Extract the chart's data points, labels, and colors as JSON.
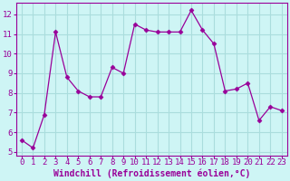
{
  "x": [
    0,
    1,
    2,
    3,
    4,
    5,
    6,
    7,
    8,
    9,
    10,
    11,
    12,
    13,
    14,
    15,
    16,
    17,
    18,
    19,
    20,
    21,
    22,
    23
  ],
  "y": [
    5.6,
    5.2,
    6.9,
    11.1,
    8.8,
    8.1,
    7.8,
    7.8,
    9.3,
    9.0,
    11.5,
    11.2,
    11.1,
    11.1,
    11.1,
    12.2,
    11.2,
    10.5,
    8.1,
    8.2,
    8.5,
    6.6,
    7.3,
    7.1
  ],
  "line_color": "#990099",
  "marker": "D",
  "marker_size": 2.5,
  "bg_color": "#cef5f5",
  "grid_color": "#aadddd",
  "xlabel": "Windchill (Refroidissement éolien,°C)",
  "xlabel_color": "#990099",
  "tick_color": "#990099",
  "ylim": [
    4.8,
    12.6
  ],
  "xlim": [
    -0.5,
    23.5
  ],
  "yticks": [
    5,
    6,
    7,
    8,
    9,
    10,
    11,
    12
  ],
  "xticks": [
    0,
    1,
    2,
    3,
    4,
    5,
    6,
    7,
    8,
    9,
    10,
    11,
    12,
    13,
    14,
    15,
    16,
    17,
    18,
    19,
    20,
    21,
    22,
    23
  ],
  "font_family": "monospace",
  "label_fontsize": 7,
  "tick_fontsize": 6.5
}
